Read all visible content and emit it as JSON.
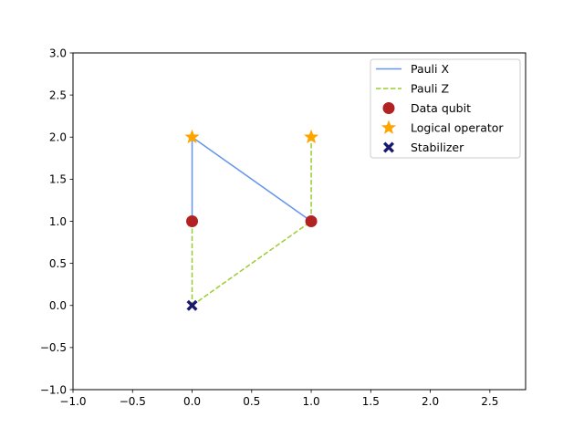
{
  "chart_data": {
    "type": "scatter",
    "xlim": [
      -1.0,
      2.8
    ],
    "ylim": [
      -1.0,
      3.0
    ],
    "xticks": [
      -1.0,
      -0.5,
      0.0,
      0.5,
      1.0,
      1.5,
      2.0,
      2.5
    ],
    "xtick_labels": [
      "−1.0",
      "−0.5",
      "0.0",
      "0.5",
      "1.0",
      "1.5",
      "2.0",
      "2.5"
    ],
    "yticks": [
      -1.0,
      -0.5,
      0.0,
      0.5,
      1.0,
      1.5,
      2.0,
      2.5,
      3.0
    ],
    "ytick_labels": [
      "−1.0",
      "−0.5",
      "0.0",
      "0.5",
      "1.0",
      "1.5",
      "2.0",
      "2.5",
      "3.0"
    ],
    "grid": false,
    "legend_position": "top-right",
    "series": [
      {
        "name": "Pauli X",
        "kind": "line",
        "style": "solid",
        "color": "#6495ED",
        "segments": [
          [
            [
              0,
              1
            ],
            [
              0,
              2
            ]
          ],
          [
            [
              0,
              2
            ],
            [
              1,
              1
            ]
          ]
        ]
      },
      {
        "name": "Pauli Z",
        "kind": "line",
        "style": "dashed",
        "color": "#9ACD32",
        "segments": [
          [
            [
              0,
              1
            ],
            [
              0,
              0
            ]
          ],
          [
            [
              0,
              0
            ],
            [
              1,
              1
            ]
          ],
          [
            [
              1,
              1
            ],
            [
              1,
              2
            ]
          ]
        ]
      },
      {
        "name": "Data qubit",
        "kind": "marker",
        "marker": "circle",
        "color": "#B22222",
        "points": [
          [
            0,
            1
          ],
          [
            1,
            1
          ]
        ]
      },
      {
        "name": "Logical operator",
        "kind": "marker",
        "marker": "star",
        "color": "#FFA500",
        "points": [
          [
            0,
            2
          ],
          [
            1,
            2
          ]
        ]
      },
      {
        "name": "Stabilizer",
        "kind": "marker",
        "marker": "x",
        "color": "#191970",
        "points": [
          [
            0,
            0
          ]
        ]
      }
    ]
  }
}
